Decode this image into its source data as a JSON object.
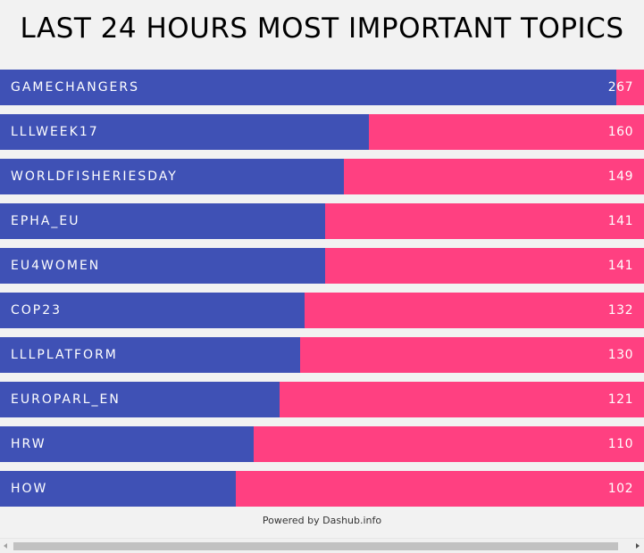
{
  "chart_data": {
    "type": "bar",
    "orientation": "horizontal",
    "title": "LAST 24 HOURS MOST IMPORTANT TOPICS",
    "categories": [
      "GAMECHANGERS",
      "LLLWEEK17",
      "WORLDFISHERIESDAY",
      "EPHA_EU",
      "EU4WOMEN",
      "COP23",
      "LLLPLATFORM",
      "EUROPARL_EN",
      "HRW",
      "HOW"
    ],
    "values": [
      267,
      160,
      149,
      141,
      141,
      132,
      130,
      121,
      110,
      102
    ],
    "xlim": [
      0,
      279
    ],
    "colors": {
      "bar": "#3f51b5",
      "track": "#ff4081",
      "text": "#ffffff"
    }
  },
  "footer": "Powered by Dashub.info"
}
